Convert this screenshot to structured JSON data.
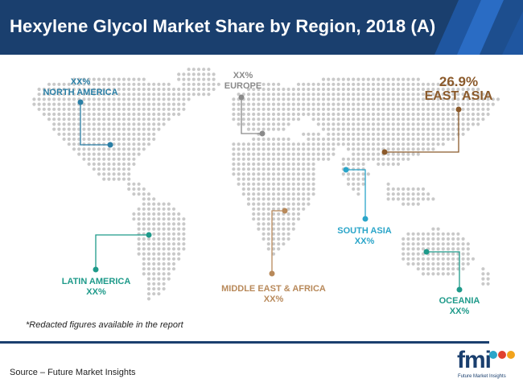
{
  "header": {
    "title": "Hexylene Glycol Market Share by Region, 2018 (A)"
  },
  "colors": {
    "brand_navy": "#1a3f6e",
    "north_america": "#2a7fa6",
    "europe": "#8a8a8a",
    "east_asia": "#8b5a2b",
    "south_asia": "#2aa5c9",
    "latin_america": "#1e9a8a",
    "middle_east_africa": "#b8895a",
    "oceania": "#1e9a8a",
    "map_dots": "#c9c9c9"
  },
  "regions": {
    "north_america": {
      "value": "XX%",
      "name": "NORTH AMERICA"
    },
    "europe": {
      "value": "XX%",
      "name": "EUROPE"
    },
    "east_asia": {
      "value": "26.9%",
      "name": "EAST ASIA"
    },
    "south_asia": {
      "value": "XX%",
      "name": "SOUTH ASIA"
    },
    "latin_america": {
      "value": "XX%",
      "name": "LATIN AMERICA"
    },
    "middle_east_africa": {
      "value": "XX%",
      "name": "MIDDLE EAST & AFRICA"
    },
    "oceania": {
      "value": "XX%",
      "name": "OCEANIA"
    }
  },
  "footnote": "*Redacted figures available in the report",
  "source": "Source – Future Market Insights",
  "logo": {
    "text": "fmi",
    "subtitle": "Future Market Insights"
  }
}
